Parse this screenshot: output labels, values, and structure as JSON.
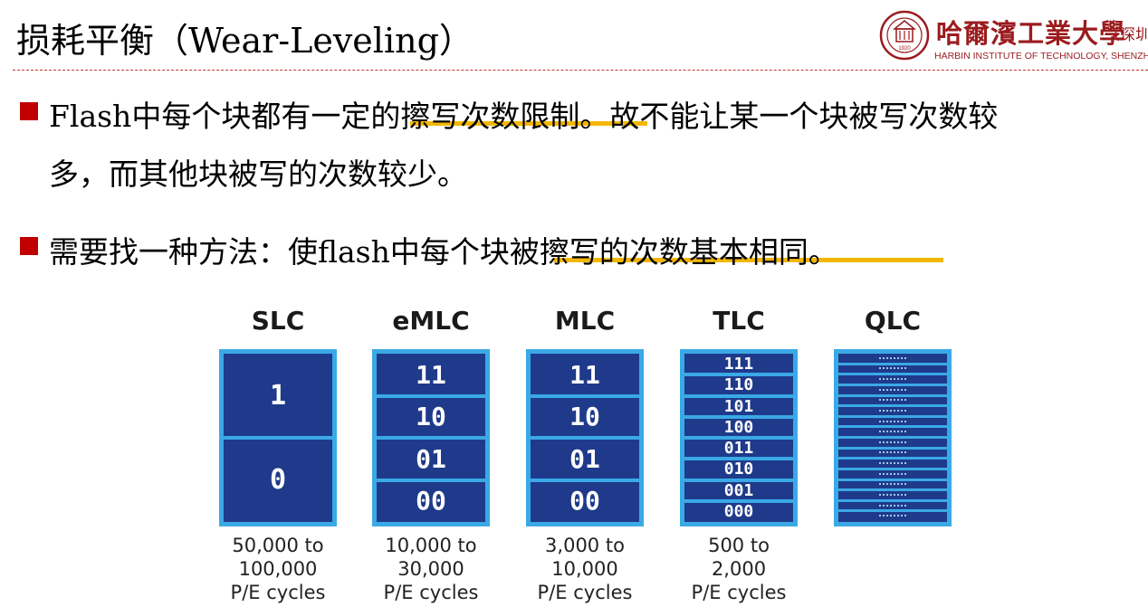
{
  "title": "损耗平衡（Wear-Leveling）",
  "logo": {
    "name_cn": "哈爾濱工業大學",
    "paren": "（深圳",
    "name_en": "HARBIN INSTITUTE OF TECHNOLOGY, SHENZH",
    "seal_text": "1920"
  },
  "bullets": [
    {
      "lines": [
        "Flash中每个块都有一定的擦写次数限制。故不能让某一个块被写次数较",
        "多，而其他块被写的次数较少。"
      ],
      "highlight": "擦写次数限制。"
    },
    {
      "lines": [
        "需要找一种方法：使flash中每个块被擦写的次数基本相同。"
      ],
      "highlight": "被擦写的次数基本相同。"
    }
  ],
  "cell_types": [
    {
      "name": "SLC",
      "states": [
        "1",
        "0"
      ],
      "caption": [
        "50,000 to",
        "100,000",
        "P/E cycles"
      ]
    },
    {
      "name": "eMLC",
      "states": [
        "11",
        "10",
        "01",
        "00"
      ],
      "caption": [
        "10,000 to",
        "30,000",
        "P/E cycles"
      ]
    },
    {
      "name": "MLC",
      "states": [
        "11",
        "10",
        "01",
        "00"
      ],
      "caption": [
        "3,000 to",
        "10,000",
        "P/E cycles"
      ]
    },
    {
      "name": "TLC",
      "states": [
        "111",
        "110",
        "101",
        "100",
        "011",
        "010",
        "001",
        "000"
      ],
      "caption": [
        "500 to",
        "2,000",
        "P/E cycles"
      ]
    },
    {
      "name": "QLC",
      "state_count": 16,
      "caption": []
    }
  ],
  "colors": {
    "bullet": "#c00000",
    "highlight": "#f2b705",
    "divider": "#c0392b",
    "cell_fill": "#1f3a8a",
    "cell_border": "#3aa9e6",
    "logo": "#9b1b1e"
  }
}
